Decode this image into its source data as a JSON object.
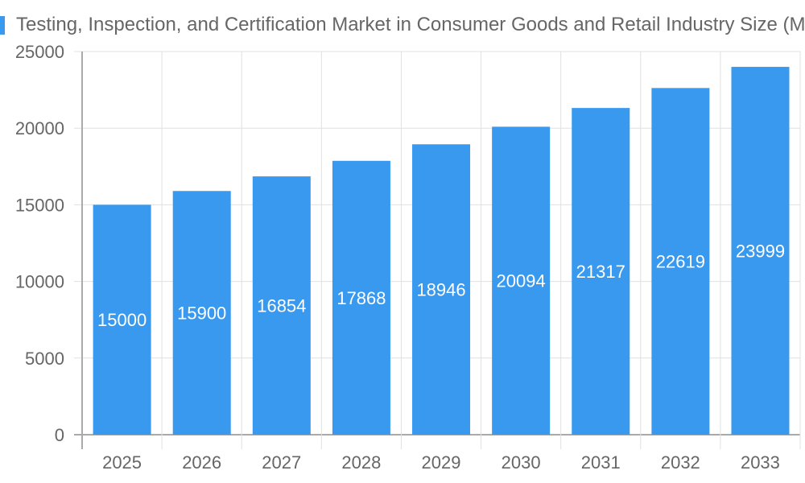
{
  "chart_data": {
    "type": "bar",
    "title": "Testing, Inspection, and Certification Market in Consumer Goods and Retail Industry Size (M",
    "categories": [
      "2025",
      "2026",
      "2027",
      "2028",
      "2029",
      "2030",
      "2031",
      "2032",
      "2033"
    ],
    "values": [
      15000,
      15900,
      16854,
      17868,
      18946,
      20094,
      21317,
      22619,
      23999
    ],
    "ylim": [
      0,
      25000
    ],
    "yticks": [
      0,
      5000,
      10000,
      15000,
      20000,
      25000
    ],
    "xlabel": "",
    "ylabel": "",
    "grid": true,
    "data_labels": true,
    "colors": {
      "bar": "#3899ef",
      "title_marker": "#3899ef",
      "grid": "#e0e0e0",
      "axis": "#aaaaaa"
    }
  }
}
